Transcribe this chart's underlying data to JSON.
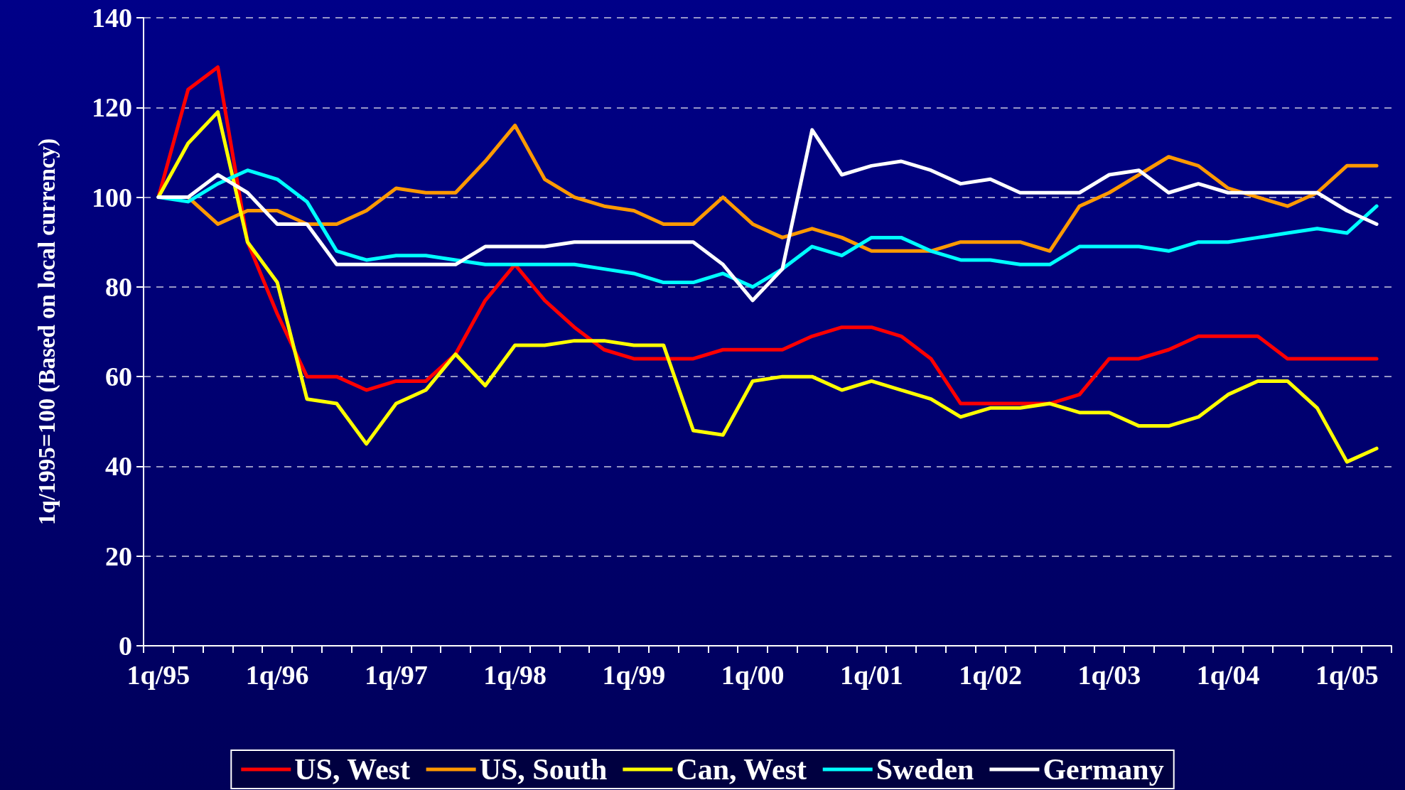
{
  "chart_data": {
    "type": "line",
    "ylabel": "1q/1995=100 (Based on local currency)",
    "categories": [
      "1q/95",
      null,
      null,
      null,
      "1q/96",
      null,
      null,
      null,
      "1q/97",
      null,
      null,
      null,
      "1q/98",
      null,
      null,
      null,
      "1q/99",
      null,
      null,
      null,
      "1q/00",
      null,
      null,
      null,
      "1q/01",
      null,
      null,
      null,
      "1q/02",
      null,
      null,
      null,
      "1q/03",
      null,
      null,
      null,
      "1q/04",
      null,
      null,
      null,
      "1q/05",
      null
    ],
    "series": [
      {
        "name": "US, West",
        "color": "#ff0000",
        "values": [
          100,
          124,
          129,
          90,
          74,
          60,
          60,
          57,
          59,
          59,
          65,
          77,
          85,
          77,
          71,
          66,
          64,
          64,
          64,
          66,
          66,
          66,
          69,
          71,
          71,
          69,
          64,
          54,
          54,
          54,
          54,
          56,
          64,
          64,
          66,
          69,
          69,
          69,
          64,
          64,
          64,
          64
        ]
      },
      {
        "name": "US, South",
        "color": "#ff9900",
        "values": [
          100,
          100,
          94,
          97,
          97,
          94,
          94,
          97,
          102,
          101,
          101,
          108,
          116,
          104,
          100,
          98,
          97,
          94,
          94,
          100,
          94,
          91,
          93,
          91,
          88,
          88,
          88,
          90,
          90,
          90,
          88,
          98,
          101,
          105,
          109,
          107,
          102,
          100,
          98,
          101,
          107,
          107
        ]
      },
      {
        "name": "Can, West",
        "color": "#ffff00",
        "values": [
          100,
          112,
          119,
          90,
          81,
          55,
          54,
          45,
          54,
          57,
          65,
          58,
          67,
          67,
          68,
          68,
          67,
          67,
          48,
          47,
          59,
          60,
          60,
          57,
          59,
          57,
          55,
          51,
          53,
          53,
          54,
          52,
          52,
          49,
          49,
          51,
          56,
          59,
          59,
          53,
          41,
          44
        ]
      },
      {
        "name": "Sweden",
        "color": "#00ffff",
        "values": [
          100,
          99,
          103,
          106,
          104,
          99,
          88,
          86,
          87,
          87,
          86,
          85,
          85,
          85,
          85,
          84,
          83,
          81,
          81,
          83,
          80,
          84,
          89,
          87,
          91,
          91,
          88,
          86,
          86,
          85,
          85,
          89,
          89,
          89,
          88,
          90,
          90,
          91,
          92,
          93,
          92,
          98
        ]
      },
      {
        "name": "Germany",
        "color": "#ffffff",
        "values": [
          100,
          100,
          105,
          101,
          94,
          94,
          85,
          85,
          85,
          85,
          85,
          89,
          89,
          89,
          90,
          90,
          90,
          90,
          90,
          85,
          77,
          84,
          115,
          105,
          107,
          108,
          106,
          103,
          104,
          101,
          101,
          101,
          105,
          106,
          101,
          103,
          101,
          101,
          101,
          101,
          97,
          94
        ]
      }
    ],
    "ylim": [
      0,
      140
    ],
    "yticks": [
      0,
      20,
      40,
      60,
      80,
      100,
      120,
      140
    ],
    "grid": "y",
    "legend": "bottom",
    "marker": "none",
    "line_style": "solid"
  }
}
